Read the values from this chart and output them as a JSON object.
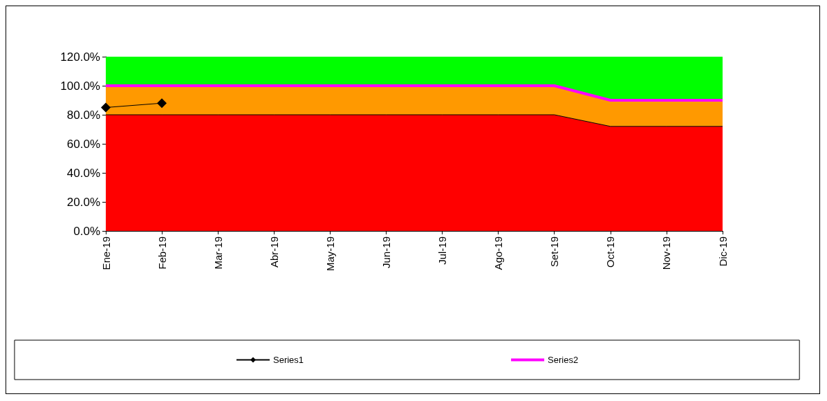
{
  "chart_data": {
    "type": "area",
    "stacked": true,
    "categories": [
      "Ene-19",
      "Feb-19",
      "Mar-19",
      "Abr-19",
      "May-19",
      "Jun-19",
      "Jul-19",
      "Ago-19",
      "Set-19",
      "Oct-19",
      "Nov-19",
      "Dic-19"
    ],
    "series": [
      {
        "color": "#ff0000",
        "values": [
          80,
          80,
          80,
          80,
          80,
          80,
          80,
          80,
          80,
          72,
          72,
          72
        ]
      },
      {
        "color": "#ff9900",
        "values": [
          20,
          20,
          20,
          20,
          20,
          20,
          20,
          20,
          20,
          18,
          18,
          18
        ]
      },
      {
        "color": "#00ff00",
        "values": [
          20,
          20,
          20,
          20,
          20,
          20,
          20,
          20,
          20,
          30,
          30,
          30
        ]
      },
      {
        "type": "line",
        "name": "Series1",
        "color": "#000000",
        "marker": "diamond",
        "values": [
          85,
          88,
          null,
          null,
          null,
          null,
          null,
          null,
          null,
          null,
          null,
          null
        ]
      },
      {
        "type": "line",
        "name": "Series2",
        "color": "#ff00ff",
        "marker": "none",
        "values": [
          100,
          100,
          100,
          100,
          100,
          100,
          100,
          100,
          100,
          90,
          90,
          90
        ]
      }
    ],
    "ylim": [
      0,
      120
    ],
    "yticks": [
      {
        "value": 0,
        "label": "0.0%"
      },
      {
        "value": 20,
        "label": "20.0%"
      },
      {
        "value": 40,
        "label": "40.0%"
      },
      {
        "value": 60,
        "label": "60.0%"
      },
      {
        "value": 80,
        "label": "80.0%"
      },
      {
        "value": 100,
        "label": "100.0%"
      },
      {
        "value": 120,
        "label": "120.0%"
      }
    ],
    "grid": false,
    "legend": "bottom"
  }
}
